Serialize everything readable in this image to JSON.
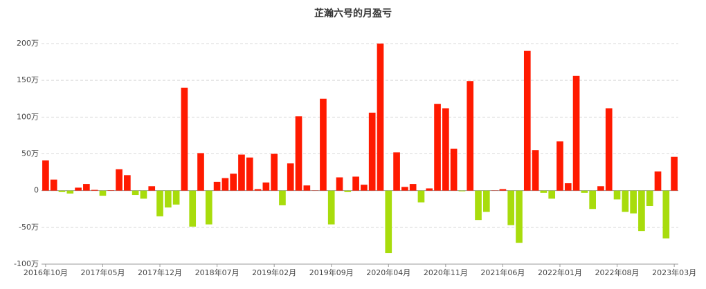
{
  "chart_data": {
    "type": "bar",
    "title": "芷瀚六号的月盈亏",
    "categories": [
      "2016年10月",
      null,
      null,
      null,
      null,
      null,
      null,
      "2017年05月",
      null,
      null,
      null,
      null,
      null,
      null,
      "2017年12月",
      null,
      null,
      null,
      null,
      null,
      null,
      "2018年07月",
      null,
      null,
      null,
      null,
      null,
      null,
      "2019年02月",
      null,
      null,
      null,
      null,
      null,
      null,
      "2019年09月",
      null,
      null,
      null,
      null,
      null,
      null,
      "2020年04月",
      null,
      null,
      null,
      null,
      null,
      null,
      "2020年11月",
      null,
      null,
      null,
      null,
      null,
      null,
      "2021年06月",
      null,
      null,
      null,
      null,
      null,
      null,
      "2022年01月",
      null,
      null,
      null,
      null,
      null,
      null,
      "2022年08月",
      null,
      null,
      null,
      null,
      null,
      null,
      "2023年03月"
    ],
    "values": [
      41,
      15,
      -2,
      -4,
      4,
      9,
      1,
      -7,
      0.5,
      29,
      21,
      -6,
      -11,
      6,
      -35,
      -23,
      -19,
      140,
      -49,
      51,
      -46,
      12,
      17,
      23,
      49,
      45,
      2,
      11,
      50,
      -20,
      37,
      101,
      7,
      0.3,
      125,
      -46,
      18,
      -2,
      19,
      8,
      106,
      200,
      -85,
      52,
      5,
      9,
      -16,
      3,
      118,
      112,
      57,
      -1,
      149,
      -40,
      -29,
      0.3,
      2,
      -47,
      -71,
      190,
      55,
      -3,
      -11,
      67,
      10,
      156,
      -3,
      -25,
      6,
      112,
      -12,
      -29,
      -31,
      -55,
      -21,
      26,
      -65,
      46
    ],
    "positive_color": "#ff1a00",
    "negative_color": "#a8dc0c",
    "ylim": [
      -100,
      200
    ],
    "yticks": [
      {
        "value": -100,
        "label": "-100万"
      },
      {
        "value": -50,
        "label": "-50万"
      },
      {
        "value": 0,
        "label": "0"
      },
      {
        "value": 50,
        "label": "50万"
      },
      {
        "value": 100,
        "label": "100万"
      },
      {
        "value": 150,
        "label": "150万"
      },
      {
        "value": 200,
        "label": "200万"
      }
    ],
    "grid": true
  }
}
